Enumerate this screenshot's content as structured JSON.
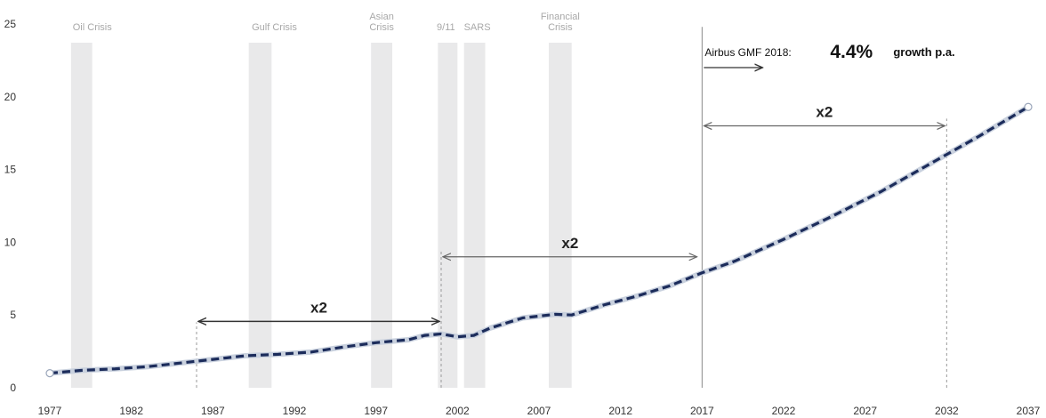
{
  "chart_data": {
    "type": "line",
    "title": "",
    "xlabel": "",
    "ylabel": "",
    "xlim": [
      1977,
      2037
    ],
    "ylim": [
      0,
      25
    ],
    "x_ticks": [
      "1977",
      "1982",
      "1987",
      "1992",
      "1997",
      "2002",
      "2007",
      "2012",
      "2017",
      "2022",
      "2027",
      "2032",
      "2037"
    ],
    "y_ticks": [
      "0",
      "5",
      "10",
      "15",
      "20",
      "25"
    ],
    "grid": false,
    "legend": "none",
    "series": [
      {
        "color": "#1c2c5b",
        "points": [
          [
            1977,
            1.0
          ],
          [
            1979,
            1.2
          ],
          [
            1981,
            1.3
          ],
          [
            1983,
            1.45
          ],
          [
            1985,
            1.7
          ],
          [
            1987,
            1.95
          ],
          [
            1989,
            2.2
          ],
          [
            1991,
            2.3
          ],
          [
            1993,
            2.45
          ],
          [
            1995,
            2.8
          ],
          [
            1997,
            3.1
          ],
          [
            1999,
            3.3
          ],
          [
            2000,
            3.6
          ],
          [
            2001,
            3.7
          ],
          [
            2002,
            3.5
          ],
          [
            2003,
            3.6
          ],
          [
            2004,
            4.1
          ],
          [
            2006,
            4.8
          ],
          [
            2008,
            5.05
          ],
          [
            2009,
            5.0
          ],
          [
            2011,
            5.7
          ],
          [
            2013,
            6.3
          ],
          [
            2015,
            7.0
          ],
          [
            2017,
            7.9
          ],
          [
            2019,
            8.7
          ],
          [
            2022,
            10.2
          ],
          [
            2025,
            11.8
          ],
          [
            2028,
            13.5
          ],
          [
            2031,
            15.4
          ],
          [
            2034,
            17.3
          ],
          [
            2037,
            19.3
          ]
        ]
      }
    ],
    "crisis_bands": [
      {
        "label": [
          "Oil Crisis"
        ],
        "from": 1978.3,
        "to": 1979.6
      },
      {
        "label": [
          "Gulf Crisis"
        ],
        "from": 1989.2,
        "to": 1990.6
      },
      {
        "label": [
          "Asian",
          "Crisis"
        ],
        "from": 1996.7,
        "to": 1998.0
      },
      {
        "label": [
          "9/11"
        ],
        "from": 2000.8,
        "to": 2002.0
      },
      {
        "label": [
          "SARS"
        ],
        "from": 2002.4,
        "to": 2003.7
      },
      {
        "label": [
          "Financial",
          "Crisis"
        ],
        "from": 2007.6,
        "to": 2009.0
      }
    ],
    "doubling_arrows": [
      {
        "label": "x2",
        "from": 1986.0,
        "to": 2001.0,
        "y": 4.5,
        "color": "#333333"
      },
      {
        "label": "x2",
        "from": 2001.0,
        "to": 2016.8,
        "y": 9.0,
        "color": "#666666"
      },
      {
        "label": "x2",
        "from": 2017.0,
        "to": 2032.0,
        "y": 18.0,
        "color": "#666666"
      }
    ],
    "dashed_markers": [
      {
        "x": 1986.0,
        "from_y": 0,
        "to_y": 4.5
      },
      {
        "x": 2001.0,
        "from_y": 0,
        "to_y": 9.5
      },
      {
        "x": 2032.0,
        "from_y": 0,
        "to_y": 18.5
      }
    ],
    "forecast_start": {
      "x": 2017.0,
      "to_y": 24.8
    },
    "annotation": {
      "prefix": "Airbus GMF 2018:",
      "value": "4.4%",
      "suffix": "growth p.a."
    }
  }
}
